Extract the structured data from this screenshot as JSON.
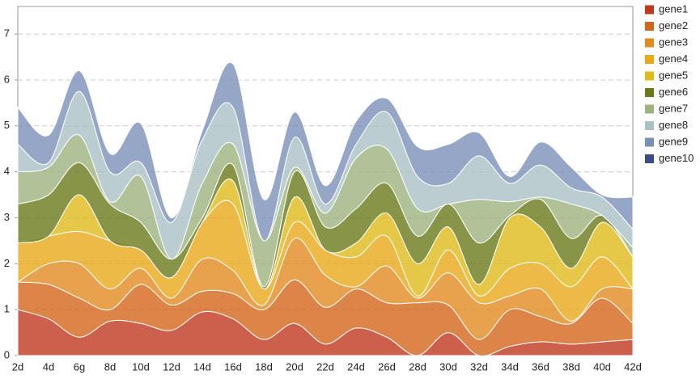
{
  "chart_data": {
    "type": "stacked_area",
    "categories": [
      "2d",
      "4d",
      "6g",
      "8d",
      "10d",
      "12d",
      "14d",
      "16d",
      "18d",
      "20d",
      "22d",
      "24d",
      "26d",
      "28d",
      "30d",
      "32d",
      "34d",
      "36d",
      "38d",
      "40d",
      "42d"
    ],
    "series": [
      {
        "name": "gene1",
        "color": "#c1381f",
        "values": [
          1.0,
          0.8,
          0.4,
          0.75,
          0.7,
          0.55,
          0.95,
          0.8,
          0.35,
          0.7,
          0.25,
          0.6,
          0.4,
          0,
          0.5,
          0,
          0.2,
          0.3,
          0.25,
          0.3,
          0.35
        ]
      },
      {
        "name": "gene2",
        "color": "#d4661c",
        "values": [
          0.6,
          0.75,
          0.85,
          0.25,
          0.85,
          0.55,
          0.45,
          0.55,
          0.65,
          0.95,
          0.8,
          0.85,
          0.75,
          1.15,
          0.6,
          0.35,
          0.8,
          0.55,
          0.45,
          0.95,
          0.35
        ]
      },
      {
        "name": "gene3",
        "color": "#e28b20",
        "values": [
          0,
          0.45,
          0.75,
          0.45,
          0.35,
          0.15,
          0.7,
          0.5,
          0.1,
          0.9,
          0.7,
          0.05,
          0.8,
          0.1,
          0.7,
          0.8,
          0.3,
          0.6,
          0.05,
          0.2,
          0.75
        ]
      },
      {
        "name": "gene4",
        "color": "#e9a919",
        "values": [
          0.85,
          0.6,
          0.7,
          1.05,
          0.4,
          0.45,
          0.8,
          1.45,
          0.35,
          0.35,
          0.55,
          0.65,
          0.65,
          0.05,
          0.5,
          0.15,
          0.6,
          0.55,
          0.75,
          0.7,
          0
        ]
      },
      {
        "name": "gene5",
        "color": "#dfba1a",
        "values": [
          0,
          0,
          0.8,
          0,
          0,
          0,
          0,
          0.5,
          0,
          0.55,
          0,
          0.3,
          0.5,
          0.7,
          0.5,
          0.25,
          1.1,
          0.8,
          0.4,
          0.75,
          0.7
        ]
      },
      {
        "name": "gene6",
        "color": "#6a7b1a",
        "values": [
          0.85,
          0.9,
          0.7,
          0.8,
          0.6,
          0.4,
          0.1,
          0.35,
          0.05,
          0.55,
          0.5,
          0.75,
          0.65,
          0.6,
          0.5,
          0.9,
          0.05,
          0.6,
          0.65,
          0.15,
          0
        ]
      },
      {
        "name": "gene7",
        "color": "#9db37f",
        "values": [
          0.7,
          0.6,
          0.6,
          0.05,
          1.0,
          0,
          0.75,
          0.45,
          1.0,
          0.1,
          0.3,
          1.1,
          0.75,
          0.6,
          0,
          0.95,
          0.3,
          0.05,
          0.75,
          0,
          0.2
        ]
      },
      {
        "name": "gene8",
        "color": "#abc0c5",
        "values": [
          0.6,
          0.1,
          0.95,
          0.65,
          0.3,
          0.8,
          0.95,
          0.8,
          0,
          0.65,
          0.2,
          0.3,
          0.8,
          0.7,
          0.45,
          0.95,
          0.4,
          0.7,
          0.35,
          0.4,
          0.4
        ]
      },
      {
        "name": "gene9",
        "color": "#7b90b8",
        "values": [
          0.8,
          0.6,
          0.45,
          0.4,
          0.85,
          0.1,
          0.2,
          0.95,
          0.9,
          0.55,
          0.4,
          0.5,
          0.3,
          0.65,
          0.85,
          0.5,
          0.15,
          0.5,
          0.45,
          0.05,
          0.7
        ]
      },
      {
        "name": "gene10",
        "color": "#3e4b88",
        "values": [
          0,
          0,
          0,
          0,
          0,
          0,
          0,
          0,
          0,
          0,
          0,
          0,
          0,
          0,
          0,
          0,
          0,
          0,
          0,
          0,
          0
        ]
      }
    ],
    "ylim": [
      0,
      7.6
    ],
    "yticks": [
      0,
      1,
      2,
      3,
      4,
      5,
      6,
      7
    ],
    "grid": true,
    "legend": "right"
  }
}
